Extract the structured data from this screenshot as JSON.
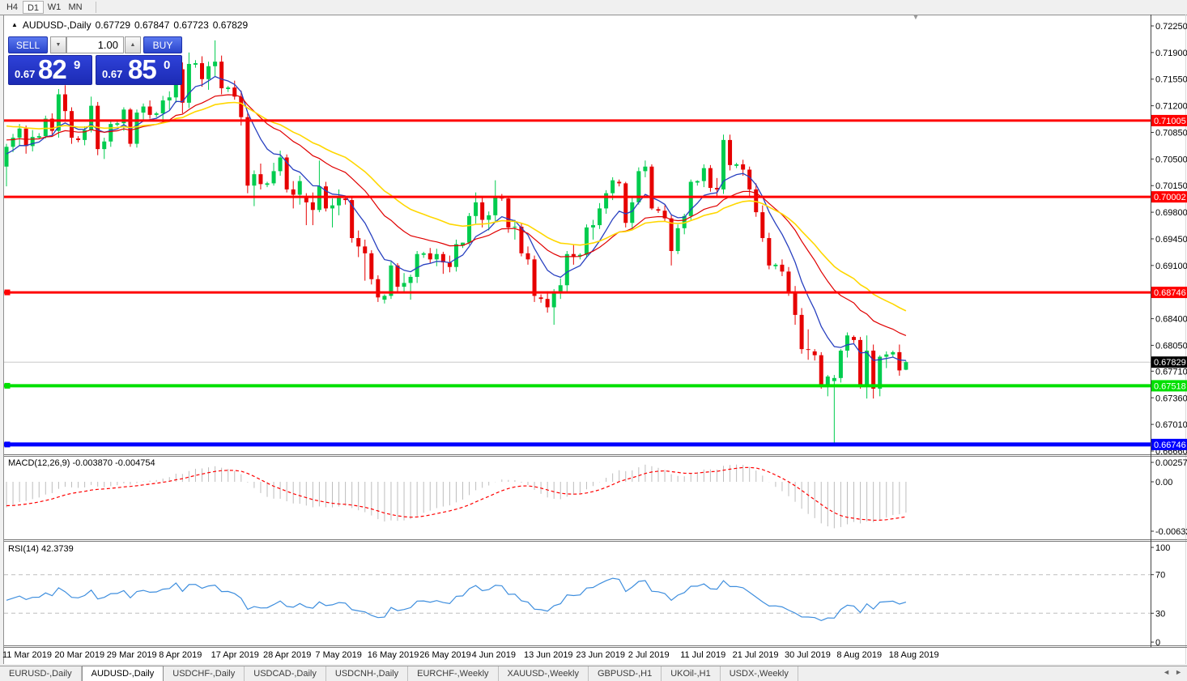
{
  "toolbar": {
    "buttons": [
      {
        "label": "H4",
        "active": false
      },
      {
        "label": "D1",
        "active": true
      },
      {
        "label": "W1",
        "active": false
      },
      {
        "label": "MN",
        "active": false
      }
    ]
  },
  "title": {
    "collapse_icon": "▲",
    "symbol": "AUDUSD-,Daily",
    "open": "0.67729",
    "high": "0.67847",
    "low": "0.67723",
    "close": "0.67829"
  },
  "shift_marker_icon": "▼",
  "trade_panel": {
    "sell_label": "SELL",
    "buy_label": "BUY",
    "volume": "1.00",
    "volume_down_icon": "▼",
    "volume_up_icon": "▲",
    "sell_price": {
      "base": "0.67",
      "big": "82",
      "pip": "9"
    },
    "buy_price": {
      "base": "0.67",
      "big": "85",
      "pip": "0"
    }
  },
  "chart_data": {
    "type": "candlestick",
    "symbol": "AUDUSD",
    "timeframe": "Daily",
    "bull_color": "#00cc4e",
    "bear_color": "#e60000",
    "y_range": {
      "top_price": 0.72399,
      "bottom_price": 0.66628,
      "top_y": 18,
      "bottom_y": 560
    },
    "bar_start_x": 8,
    "bar_spacing": 8.05,
    "label_every_bars": 8,
    "price_ticks": [
      "0.72250",
      "0.71900",
      "0.71550",
      "0.71200",
      "0.70850",
      "0.70500",
      "0.70150",
      "0.69800",
      "0.69450",
      "0.69100",
      "0.68400",
      "0.68050",
      "0.67710",
      "0.67360",
      "0.67010",
      "0.66660"
    ],
    "date_labels": [
      "11 Mar 2019",
      "20 Mar 2019",
      "29 Mar 2019",
      "8 Apr 2019",
      "17 Apr 2019",
      "28 Apr 2019",
      "7 May 2019",
      "16 May 2019",
      "26 May 2019",
      "4 Jun 2019",
      "13 Jun 2019",
      "23 Jun 2019",
      "2 Jul 2019",
      "11 Jul 2019",
      "21 Jul 2019",
      "30 Jul 2019",
      "8 Aug 2019",
      "18 Aug 2019"
    ],
    "current_price": {
      "price": 0.67829,
      "label": "0.67829",
      "line_color": "#c8c8c8",
      "badge_color": "#000000"
    },
    "levels": [
      {
        "price": 0.71005,
        "label": "0.71005",
        "color": "#ff0000",
        "width": 3,
        "handle": false
      },
      {
        "price": 0.70002,
        "label": "0.70002",
        "color": "#ff0000",
        "width": 3,
        "handle": false
      },
      {
        "price": 0.68746,
        "label": "0.68746",
        "color": "#ff0000",
        "width": 3,
        "handle": true
      },
      {
        "price": 0.67518,
        "label": "0.67518",
        "color": "#00e000",
        "width": 4,
        "handle": true
      },
      {
        "price": 0.66746,
        "label": "0.66746",
        "color": "#0000ff",
        "width": 5,
        "handle": true
      }
    ],
    "moving_averages": [
      {
        "name": "ma-fast",
        "period": 8,
        "color": "#2840c0",
        "seed": 0.7054,
        "stroke": 1.3
      },
      {
        "name": "ma-medium",
        "period": 21,
        "color": "#e00000",
        "seed": 0.7076,
        "stroke": 1.2
      },
      {
        "name": "ma-slow",
        "period": 34,
        "color": "#ffd700",
        "seed": 0.7095,
        "stroke": 1.6
      }
    ],
    "candles": [
      [
        0.704,
        0.707,
        0.7014,
        0.7066
      ],
      [
        0.7066,
        0.7083,
        0.7059,
        0.7078
      ],
      [
        0.7078,
        0.7096,
        0.7068,
        0.709
      ],
      [
        0.709,
        0.7094,
        0.7057,
        0.7067
      ],
      [
        0.7067,
        0.7088,
        0.706,
        0.7079
      ],
      [
        0.7078,
        0.7084,
        0.7076,
        0.708
      ],
      [
        0.708,
        0.7107,
        0.7077,
        0.7103
      ],
      [
        0.7103,
        0.711,
        0.7082,
        0.7087
      ],
      [
        0.7087,
        0.7142,
        0.7078,
        0.7135
      ],
      [
        0.7135,
        0.7147,
        0.7099,
        0.7113
      ],
      [
        0.7113,
        0.7118,
        0.707,
        0.7078
      ],
      [
        0.7077,
        0.708,
        0.7072,
        0.7075
      ],
      [
        0.7075,
        0.7093,
        0.7068,
        0.7088
      ],
      [
        0.7088,
        0.7132,
        0.7085,
        0.712
      ],
      [
        0.712,
        0.7125,
        0.7055,
        0.7063
      ],
      [
        0.7063,
        0.7078,
        0.705,
        0.7073
      ],
      [
        0.7073,
        0.71,
        0.7066,
        0.7096
      ],
      [
        0.7095,
        0.7099,
        0.7093,
        0.7097
      ],
      [
        0.7097,
        0.7118,
        0.7087,
        0.7115
      ],
      [
        0.7115,
        0.7117,
        0.7066,
        0.707
      ],
      [
        0.707,
        0.7115,
        0.7065,
        0.7111
      ],
      [
        0.7111,
        0.7123,
        0.7102,
        0.7119
      ],
      [
        0.7119,
        0.7127,
        0.7103,
        0.7108
      ],
      [
        0.7108,
        0.7112,
        0.7105,
        0.711
      ],
      [
        0.711,
        0.7133,
        0.7101,
        0.7127
      ],
      [
        0.7127,
        0.7139,
        0.7115,
        0.7131
      ],
      [
        0.7131,
        0.7175,
        0.7124,
        0.7168
      ],
      [
        0.7168,
        0.7177,
        0.711,
        0.7124
      ],
      [
        0.7124,
        0.719,
        0.7117,
        0.7175
      ],
      [
        0.7174,
        0.718,
        0.717,
        0.7176
      ],
      [
        0.7176,
        0.7185,
        0.7145,
        0.7155
      ],
      [
        0.7155,
        0.7178,
        0.7141,
        0.7172
      ],
      [
        0.7172,
        0.7206,
        0.7159,
        0.7178
      ],
      [
        0.7178,
        0.7186,
        0.7135,
        0.7143
      ],
      [
        0.7142,
        0.7146,
        0.7138,
        0.7144
      ],
      [
        0.7144,
        0.7153,
        0.7128,
        0.7132
      ],
      [
        0.7132,
        0.714,
        0.7094,
        0.7105
      ],
      [
        0.7105,
        0.711,
        0.7005,
        0.7015
      ],
      [
        0.7015,
        0.7035,
        0.6988,
        0.703
      ],
      [
        0.703,
        0.7044,
        0.701,
        0.7017
      ],
      [
        0.7016,
        0.702,
        0.7013,
        0.7018
      ],
      [
        0.7018,
        0.7045,
        0.7015,
        0.7034
      ],
      [
        0.7034,
        0.7061,
        0.7028,
        0.7052
      ],
      [
        0.7052,
        0.7056,
        0.7006,
        0.701
      ],
      [
        0.701,
        0.7021,
        0.6985,
        0.7003
      ],
      [
        0.7003,
        0.7028,
        0.699,
        0.7021
      ],
      [
        0.7,
        0.7005,
        0.6963,
        0.6993
      ],
      [
        0.6993,
        0.7006,
        0.6963,
        0.6983
      ],
      [
        0.6983,
        0.7048,
        0.698,
        0.7014
      ],
      [
        0.7014,
        0.702,
        0.6981,
        0.6985
      ],
      [
        0.6985,
        0.6998,
        0.696,
        0.6989
      ],
      [
        0.6989,
        0.701,
        0.6976,
        0.7
      ],
      [
        0.6998,
        0.7001,
        0.699,
        0.6996
      ],
      [
        0.6996,
        0.7,
        0.694,
        0.6946
      ],
      [
        0.6946,
        0.6956,
        0.6921,
        0.6935
      ],
      [
        0.6935,
        0.6944,
        0.689,
        0.6926
      ],
      [
        0.6926,
        0.693,
        0.6885,
        0.6892
      ],
      [
        0.6892,
        0.6897,
        0.6862,
        0.6868
      ],
      [
        0.6865,
        0.6872,
        0.686,
        0.687
      ],
      [
        0.687,
        0.6915,
        0.6866,
        0.691
      ],
      [
        0.691,
        0.6913,
        0.6875,
        0.6882
      ],
      [
        0.6882,
        0.69,
        0.6874,
        0.6887
      ],
      [
        0.6887,
        0.6898,
        0.6865,
        0.6895
      ],
      [
        0.6895,
        0.6929,
        0.6887,
        0.6925
      ],
      [
        0.6924,
        0.6928,
        0.692,
        0.6926
      ],
      [
        0.6926,
        0.6933,
        0.6913,
        0.6918
      ],
      [
        0.6918,
        0.6932,
        0.6909,
        0.6925
      ],
      [
        0.6925,
        0.6928,
        0.6899,
        0.6914
      ],
      [
        0.6914,
        0.6923,
        0.6901,
        0.6908
      ],
      [
        0.6908,
        0.6944,
        0.6902,
        0.6938
      ],
      [
        0.6936,
        0.694,
        0.6933,
        0.694
      ],
      [
        0.694,
        0.6979,
        0.6937,
        0.6975
      ],
      [
        0.6975,
        0.7006,
        0.6965,
        0.6993
      ],
      [
        0.6993,
        0.7,
        0.696,
        0.697
      ],
      [
        0.697,
        0.6981,
        0.6956,
        0.6976
      ],
      [
        0.6976,
        0.7022,
        0.6968,
        0.7
      ],
      [
        0.7,
        0.7004,
        0.6995,
        0.6998
      ],
      [
        0.6998,
        0.7001,
        0.6953,
        0.696
      ],
      [
        0.696,
        0.697,
        0.6944,
        0.6961
      ],
      [
        0.6961,
        0.6966,
        0.6922,
        0.6926
      ],
      [
        0.6926,
        0.6935,
        0.6911,
        0.6918
      ],
      [
        0.6918,
        0.6923,
        0.6862,
        0.687
      ],
      [
        0.6868,
        0.6872,
        0.6861,
        0.6866
      ],
      [
        0.6866,
        0.6876,
        0.6848,
        0.6855
      ],
      [
        0.6855,
        0.6879,
        0.6832,
        0.6876
      ],
      [
        0.6876,
        0.6893,
        0.6866,
        0.6884
      ],
      [
        0.6884,
        0.6929,
        0.6875,
        0.6925
      ],
      [
        0.6925,
        0.6938,
        0.6911,
        0.6921
      ],
      [
        0.6922,
        0.6926,
        0.6918,
        0.6924
      ],
      [
        0.6924,
        0.6964,
        0.692,
        0.696
      ],
      [
        0.696,
        0.697,
        0.6944,
        0.6963
      ],
      [
        0.6963,
        0.6992,
        0.6958,
        0.6985
      ],
      [
        0.6985,
        0.7009,
        0.6978,
        0.7005
      ],
      [
        0.7005,
        0.7026,
        0.6996,
        0.7022
      ],
      [
        0.702,
        0.7023,
        0.7014,
        0.7018
      ],
      [
        0.7018,
        0.702,
        0.696,
        0.6966
      ],
      [
        0.6966,
        0.6999,
        0.6958,
        0.6993
      ],
      [
        0.6993,
        0.7039,
        0.699,
        0.7034
      ],
      [
        0.7034,
        0.7048,
        0.7026,
        0.704
      ],
      [
        0.704,
        0.7043,
        0.6983,
        0.6985
      ],
      [
        0.6984,
        0.6987,
        0.6979,
        0.6982
      ],
      [
        0.6982,
        0.6989,
        0.6968,
        0.6972
      ],
      [
        0.6972,
        0.6976,
        0.691,
        0.6929
      ],
      [
        0.6929,
        0.6964,
        0.6925,
        0.6959
      ],
      [
        0.6959,
        0.6978,
        0.6951,
        0.6975
      ],
      [
        0.6975,
        0.7023,
        0.697,
        0.702
      ],
      [
        0.7019,
        0.7022,
        0.7015,
        0.7021
      ],
      [
        0.7021,
        0.7043,
        0.7013,
        0.7038
      ],
      [
        0.7038,
        0.7042,
        0.7007,
        0.7012
      ],
      [
        0.7012,
        0.7025,
        0.7001,
        0.701
      ],
      [
        0.701,
        0.7082,
        0.7004,
        0.7075
      ],
      [
        0.7075,
        0.7082,
        0.7035,
        0.7042
      ],
      [
        0.7041,
        0.7045,
        0.7038,
        0.7043
      ],
      [
        0.7043,
        0.7049,
        0.7028,
        0.7036
      ],
      [
        0.7036,
        0.704,
        0.7,
        0.701
      ],
      [
        0.701,
        0.7018,
        0.6974,
        0.698
      ],
      [
        0.698,
        0.6989,
        0.6941,
        0.6946
      ],
      [
        0.6946,
        0.6953,
        0.6905,
        0.691
      ],
      [
        0.6909,
        0.6913,
        0.6905,
        0.6911
      ],
      [
        0.6911,
        0.6918,
        0.6896,
        0.6902
      ],
      [
        0.6902,
        0.6908,
        0.687,
        0.6874
      ],
      [
        0.6874,
        0.6883,
        0.6832,
        0.6845
      ],
      [
        0.6845,
        0.6854,
        0.6794,
        0.68
      ],
      [
        0.68,
        0.6826,
        0.6786,
        0.6799
      ],
      [
        0.6797,
        0.68,
        0.6785,
        0.6792
      ],
      [
        0.6792,
        0.6796,
        0.6748,
        0.6753
      ],
      [
        0.6753,
        0.6766,
        0.6738,
        0.6764
      ],
      [
        0.6758,
        0.6766,
        0.6677,
        0.6762
      ],
      [
        0.6762,
        0.68,
        0.6756,
        0.6798
      ],
      [
        0.6798,
        0.6822,
        0.6789,
        0.6818
      ],
      [
        0.6816,
        0.6818,
        0.6808,
        0.6812
      ],
      [
        0.6812,
        0.6816,
        0.6748,
        0.6753
      ],
      [
        0.6753,
        0.6818,
        0.6735,
        0.6798
      ],
      [
        0.6798,
        0.6806,
        0.6735,
        0.6748
      ],
      [
        0.6748,
        0.6792,
        0.6738,
        0.679
      ],
      [
        0.679,
        0.6797,
        0.6775,
        0.6793
      ],
      [
        0.6793,
        0.6798,
        0.679,
        0.6796
      ],
      [
        0.6796,
        0.6806,
        0.6765,
        0.6772
      ],
      [
        0.67729,
        0.67847,
        0.67723,
        0.67829
      ]
    ]
  },
  "macd_panel": {
    "label": "MACD(12,26,9) -0.003870 -0.004754",
    "fast": 12,
    "slow": 26,
    "signal": 9,
    "value": "-0.003870",
    "signal_value": "-0.004754",
    "axis": [
      "0.002574",
      "0.00",
      "-0.006326"
    ],
    "hist_color": "#bdbdbd",
    "signal_color": "#ff0000",
    "seeds": {
      "ema_fast": 0.707,
      "ema_slow": 0.7105,
      "signal": -0.003
    }
  },
  "rsi_panel": {
    "label": "RSI(14) 42.3739",
    "period": 14,
    "value": "42.3739",
    "axis": [
      "100",
      "70",
      "30",
      "0"
    ],
    "level_lines": [
      70,
      30
    ],
    "line_color": "#3e8ede",
    "seeds": {
      "avg_gain": 0.001,
      "avg_loss": 0.0013
    }
  },
  "tabs": {
    "items": [
      {
        "label": "EURUSD-,Daily",
        "active": false
      },
      {
        "label": "AUDUSD-,Daily",
        "active": true
      },
      {
        "label": "USDCHF-,Daily",
        "active": false
      },
      {
        "label": "USDCAD-,Daily",
        "active": false
      },
      {
        "label": "USDCNH-,Daily",
        "active": false
      },
      {
        "label": "EURCHF-,Weekly",
        "active": false
      },
      {
        "label": "XAUUSD-,Weekly",
        "active": false
      },
      {
        "label": "GBPUSD-,H1",
        "active": false
      },
      {
        "label": "UKOil-,H1",
        "active": false
      },
      {
        "label": "USDX-,Weekly",
        "active": false
      }
    ],
    "scroll_left_icon": "◄",
    "scroll_right_icon": "►"
  }
}
